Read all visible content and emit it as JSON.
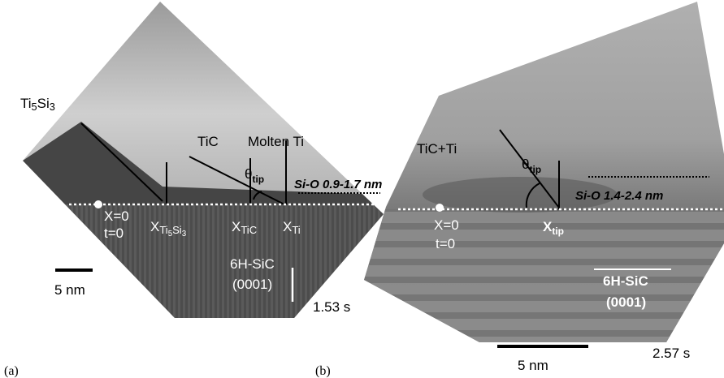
{
  "panels": [
    {
      "label": "(a)",
      "phase_left": "Ti5Si3",
      "phase_mid": "TiC",
      "phase_right": "Molten Ti",
      "angle": {
        "main": "θ",
        "sub": "tip"
      },
      "oxide": "Si-O 0.9-1.7 nm",
      "origin_x": "X=0",
      "origin_t": "t=0",
      "positions": [
        {
          "main": "X",
          "sub": "Ti5Si3"
        },
        {
          "main": "X",
          "sub": "TiC"
        },
        {
          "main": "X",
          "sub": "Ti"
        }
      ],
      "substrate": "6H-SiC",
      "plane": "(0001)",
      "scale": "5 nm",
      "time": "1.53 s"
    },
    {
      "label": "(b)",
      "phase_left": "TiC+Ti",
      "angle": {
        "main": "θ",
        "sub": "tip"
      },
      "oxide": "Si-O 1.4-2.4 nm",
      "origin_x": "X=0",
      "origin_t": "t=0",
      "positions": [
        {
          "main": "X",
          "sub": "tip"
        }
      ],
      "substrate": "6H-SiC",
      "plane": "(0001)",
      "scale": "5 nm",
      "time": "2.57 s"
    }
  ]
}
